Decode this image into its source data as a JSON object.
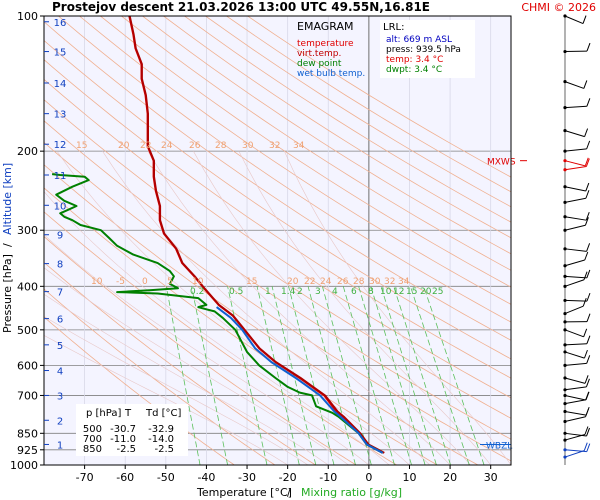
{
  "header": {
    "title": "Prostejov   descent   21.03.2026 13:00 UTC  49.55N,16.81E",
    "copyright": "CHMI © 2026"
  },
  "legend": {
    "heading": "EMAGRAM",
    "items": [
      {
        "label": "temperature",
        "color": "#e00000"
      },
      {
        "label": "virt.temp.",
        "color": "#c00000"
      },
      {
        "label": "dew point",
        "color": "#008000"
      },
      {
        "label": "wet bulb temp.",
        "color": "#1060d0"
      }
    ]
  },
  "lrl": {
    "heading": "LRL:",
    "lines": [
      {
        "text": "alt: 669 m ASL",
        "color": "#0000c0"
      },
      {
        "text": "press: 939.5 hPa",
        "color": "#000000"
      },
      {
        "text": "temp: 3.4 °C",
        "color": "#e00000"
      },
      {
        "text": "dwpt: 3.4 °C",
        "color": "#008000"
      }
    ]
  },
  "table": {
    "headers": [
      "p [hPa]",
      "T",
      "Td [°C]"
    ],
    "rows": [
      [
        "500",
        "-30.7",
        "-32.9"
      ],
      [
        "700",
        "-11.0",
        "-14.0"
      ],
      [
        "850",
        "-2.5",
        "-2.5"
      ]
    ]
  },
  "markers": {
    "mxws": "MXWS",
    "wbzl": "WBZL"
  },
  "chart_data": {
    "type": "line",
    "xlabel": "Temperature [°C]",
    "xlabel_sep": "/",
    "xlabel2": "Mixing ratio [g/kg]",
    "ylabel": "Pressure [hPa]",
    "ylabel_sep": "/",
    "ylabel2": "Altitude [km]",
    "xlim": [
      -80,
      35
    ],
    "ylim": [
      1000,
      100
    ],
    "y_scale": "log",
    "x_ticks": [
      -70,
      -60,
      -50,
      -40,
      -30,
      -20,
      -10,
      0,
      10,
      20,
      30
    ],
    "y_ticks": [
      100,
      200,
      300,
      400,
      500,
      600,
      700,
      850,
      925,
      1000
    ],
    "altitude_ticks_km": [
      1,
      2,
      3,
      4,
      5,
      6,
      7,
      8,
      9,
      10,
      11,
      12,
      13,
      14,
      15,
      16
    ],
    "altitude_pressures": [
      900,
      795,
      700,
      616,
      540,
      472,
      411,
      356,
      307,
      264,
      226,
      193,
      165,
      141,
      120,
      103
    ],
    "dry_adiabat_labels_high": [
      "15",
      "20",
      "22",
      "24",
      "26",
      "28",
      "30",
      "32",
      "34"
    ],
    "dry_adiabat_labels_low": [
      "10",
      "-5",
      "0",
      "5",
      "10",
      "15",
      "20",
      "22",
      "24",
      "26",
      "28",
      "30",
      "32",
      "34"
    ],
    "mixing_ratio_labels": [
      "0.2",
      "0.5",
      "1",
      "1.4",
      "2",
      "3",
      "4",
      "6",
      "8",
      "10",
      "12",
      "15",
      "20",
      "25"
    ],
    "mixing_ratio_values": [
      0.1,
      0.2,
      0.5,
      1,
      1.4,
      2,
      3,
      4,
      6,
      8,
      10,
      12,
      15,
      20,
      25
    ],
    "grid": true,
    "series": [
      {
        "name": "temperature",
        "color": "#e00000",
        "points": [
          [
            3.4,
            940
          ],
          [
            -0.5,
            900
          ],
          [
            -2.5,
            850
          ],
          [
            -6.5,
            780
          ],
          [
            -8,
            760
          ],
          [
            -11,
            700
          ],
          [
            -17,
            640
          ],
          [
            -23,
            590
          ],
          [
            -27,
            550
          ],
          [
            -30.7,
            500
          ],
          [
            -33.5,
            465
          ],
          [
            -37,
            440
          ],
          [
            -40.5,
            405
          ],
          [
            -43,
            380
          ],
          [
            -46,
            355
          ],
          [
            -47.5,
            330
          ],
          [
            -50.5,
            305
          ],
          [
            -51.5,
            285
          ],
          [
            -51.5,
            265
          ],
          [
            -52.5,
            245
          ],
          [
            -53,
            228
          ],
          [
            -53,
            210
          ],
          [
            -54.5,
            195
          ],
          [
            -54.5,
            180
          ],
          [
            -54.5,
            165
          ],
          [
            -55,
            150
          ],
          [
            -56,
            138
          ],
          [
            -56,
            128
          ],
          [
            -57.5,
            118
          ],
          [
            -58,
            110
          ],
          [
            -59,
            100
          ]
        ]
      },
      {
        "name": "virt.temp.",
        "color": "#b00000",
        "points": [
          [
            3.8,
            940
          ],
          [
            -0.1,
            900
          ],
          [
            -2.1,
            850
          ],
          [
            -6.2,
            780
          ],
          [
            -7.7,
            760
          ],
          [
            -10.8,
            700
          ],
          [
            -16.8,
            640
          ],
          [
            -22.9,
            590
          ],
          [
            -26.9,
            550
          ],
          [
            -30.6,
            500
          ],
          [
            -33.4,
            465
          ],
          [
            -36.9,
            440
          ],
          [
            -40.4,
            405
          ],
          [
            -42.9,
            380
          ],
          [
            -45.9,
            355
          ],
          [
            -47.4,
            330
          ],
          [
            -50.4,
            305
          ],
          [
            -51.4,
            285
          ],
          [
            -51.4,
            265
          ],
          [
            -52.4,
            245
          ],
          [
            -52.9,
            228
          ],
          [
            -52.9,
            210
          ],
          [
            -54.4,
            195
          ],
          [
            -54.4,
            180
          ],
          [
            -54.4,
            165
          ],
          [
            -54.9,
            150
          ],
          [
            -55.9,
            138
          ],
          [
            -55.9,
            128
          ],
          [
            -57.4,
            118
          ],
          [
            -57.9,
            110
          ],
          [
            -58.9,
            100
          ]
        ]
      },
      {
        "name": "dew point",
        "color": "#008000",
        "points": [
          [
            3.4,
            940
          ],
          [
            -0.5,
            900
          ],
          [
            -2.5,
            850
          ],
          [
            -7.5,
            780
          ],
          [
            -9,
            765
          ],
          [
            -13,
            740
          ],
          [
            -14,
            700
          ],
          [
            -17,
            690
          ],
          [
            -20,
            670
          ],
          [
            -23,
            640
          ],
          [
            -27,
            600
          ],
          [
            -30,
            560
          ],
          [
            -32.9,
            500
          ],
          [
            -36,
            470
          ],
          [
            -38,
            455
          ],
          [
            -40,
            450
          ],
          [
            -42,
            445
          ],
          [
            -40,
            440
          ],
          [
            -42,
            425
          ],
          [
            -52,
            415
          ],
          [
            -58,
            413
          ],
          [
            -62,
            412
          ],
          [
            -54,
            408
          ],
          [
            -47,
            404
          ],
          [
            -49,
            395
          ],
          [
            -48,
            380
          ],
          [
            -49,
            370
          ],
          [
            -52,
            355
          ],
          [
            -58,
            340
          ],
          [
            -62,
            325
          ],
          [
            -64,
            312
          ],
          [
            -66,
            300
          ],
          [
            -71,
            292
          ],
          [
            -73,
            285
          ],
          [
            -75,
            280
          ],
          [
            -76,
            275
          ],
          [
            -74,
            270
          ],
          [
            -72,
            265
          ],
          [
            -75,
            258
          ],
          [
            -77,
            250
          ],
          [
            -73,
            240
          ],
          [
            -69,
            232
          ],
          [
            -70,
            228
          ],
          [
            -76,
            226
          ],
          [
            -78,
            225
          ]
        ]
      },
      {
        "name": "wet bulb temp.",
        "color": "#1060d0",
        "points": [
          [
            3.4,
            940
          ],
          [
            -0.5,
            900
          ],
          [
            -2.5,
            850
          ],
          [
            -7,
            780
          ],
          [
            -8.5,
            760
          ],
          [
            -12,
            700
          ],
          [
            -18,
            640
          ],
          [
            -24,
            590
          ],
          [
            -28,
            550
          ],
          [
            -31.2,
            500
          ],
          [
            -34,
            470
          ],
          [
            -37.5,
            445
          ]
        ]
      }
    ],
    "wind_pressures": [
      100,
      120,
      140,
      160,
      180,
      200,
      210,
      220,
      240,
      260,
      280,
      300,
      330,
      360,
      380,
      400,
      430,
      460,
      480,
      500,
      540,
      560,
      600,
      640,
      680,
      700,
      730,
      760,
      800,
      850,
      880,
      925,
      960
    ],
    "mxws_pressure": 210,
    "wbzl_pressure": 900
  }
}
